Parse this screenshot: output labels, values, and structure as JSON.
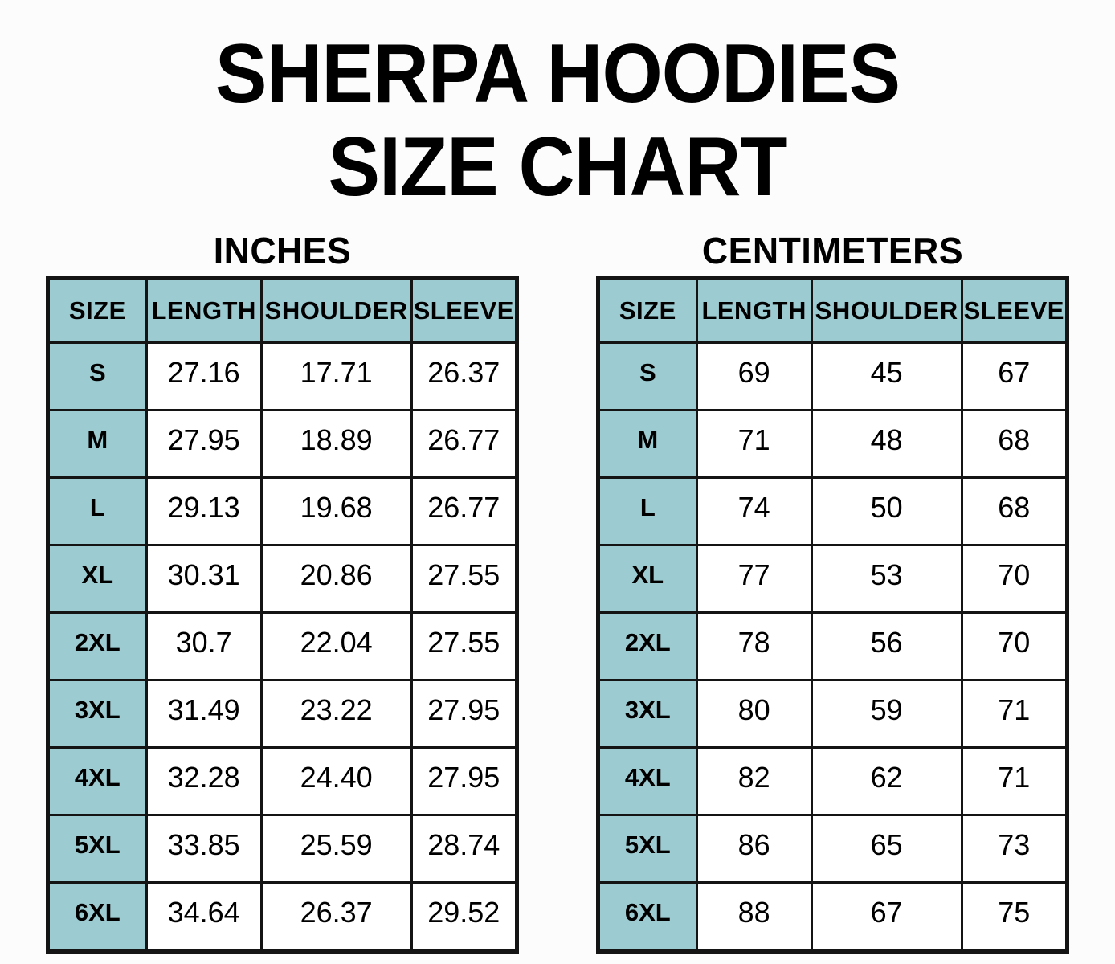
{
  "page": {
    "title_line1": "SHERPA HOODIES",
    "title_line2": "SIZE CHART"
  },
  "colors": {
    "header_fill": "#9ccbd1",
    "border": "#141414",
    "text": "#000000",
    "background": "#fdfcfc"
  },
  "chart_data": [
    {
      "type": "table",
      "title": "INCHES",
      "columns": [
        "SIZE",
        "LENGTH",
        "SHOULDER",
        "SLEEVE"
      ],
      "rows": [
        [
          "S",
          "27.16",
          "17.71",
          "26.37"
        ],
        [
          "M",
          "27.95",
          "18.89",
          "26.77"
        ],
        [
          "L",
          "29.13",
          "19.68",
          "26.77"
        ],
        [
          "XL",
          "30.31",
          "20.86",
          "27.55"
        ],
        [
          "2XL",
          "30.7",
          "22.04",
          "27.55"
        ],
        [
          "3XL",
          "31.49",
          "23.22",
          "27.95"
        ],
        [
          "4XL",
          "32.28",
          "24.40",
          "27.95"
        ],
        [
          "5XL",
          "33.85",
          "25.59",
          "28.74"
        ],
        [
          "6XL",
          "34.64",
          "26.37",
          "29.52"
        ]
      ]
    },
    {
      "type": "table",
      "title": "CENTIMETERS",
      "columns": [
        "SIZE",
        "LENGTH",
        "SHOULDER",
        "SLEEVE"
      ],
      "rows": [
        [
          "S",
          "69",
          "45",
          "67"
        ],
        [
          "M",
          "71",
          "48",
          "68"
        ],
        [
          "L",
          "74",
          "50",
          "68"
        ],
        [
          "XL",
          "77",
          "53",
          "70"
        ],
        [
          "2XL",
          "78",
          "56",
          "70"
        ],
        [
          "3XL",
          "80",
          "59",
          "71"
        ],
        [
          "4XL",
          "82",
          "62",
          "71"
        ],
        [
          "5XL",
          "86",
          "65",
          "73"
        ],
        [
          "6XL",
          "88",
          "67",
          "75"
        ]
      ]
    }
  ]
}
